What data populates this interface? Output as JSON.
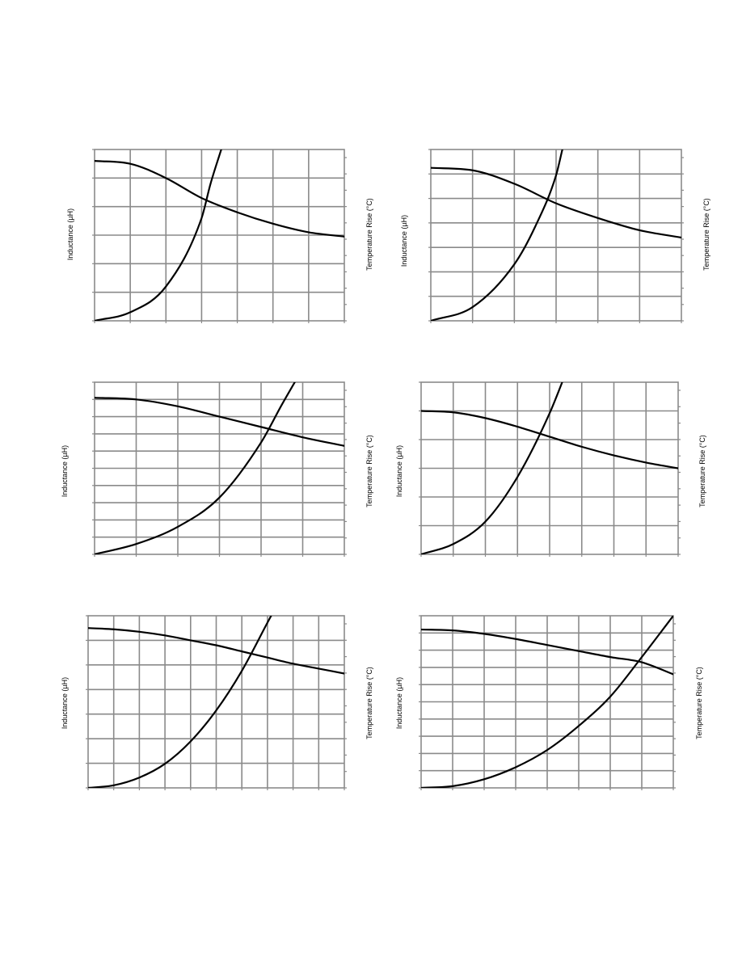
{
  "chart_data": [
    {
      "type": "line",
      "ylabel": "Inductance (µH)",
      "ylabel2": "Temperature Rise (°C)",
      "x_divisions": 7,
      "y_divisions": 6,
      "right_axis_divisions": 10,
      "series": [
        {
          "role": "inductance",
          "axis": "left",
          "x": [
            0,
            1,
            2,
            3,
            4,
            5,
            6,
            7
          ],
          "y": [
            5.6,
            5.5,
            5.0,
            4.3,
            3.8,
            3.4,
            3.1,
            2.95
          ]
        },
        {
          "role": "temperature",
          "axis": "right",
          "x": [
            0,
            1,
            2,
            3,
            3.25,
            3.55
          ],
          "y": [
            0,
            0.5,
            2.0,
            6.0,
            8.0,
            10.0
          ]
        }
      ]
    },
    {
      "type": "line",
      "ylabel": "Inductance (µH)",
      "ylabel2": "Temperature Rise (°C)",
      "x_divisions": 6,
      "y_divisions": 7,
      "right_axis_divisions": 10,
      "series": [
        {
          "role": "inductance",
          "axis": "left",
          "x": [
            0,
            1,
            2,
            3,
            4,
            5,
            6
          ],
          "y": [
            6.25,
            6.15,
            5.6,
            4.8,
            4.2,
            3.7,
            3.4
          ]
        },
        {
          "role": "temperature",
          "axis": "right",
          "x": [
            0,
            1,
            2,
            2.5,
            3.0,
            3.15
          ],
          "y": [
            0,
            0.8,
            3.3,
            5.5,
            8.5,
            10.0
          ]
        }
      ]
    },
    {
      "type": "line",
      "ylabel": "Inductance (µH)",
      "ylabel2": "Temperature Rise (°C)",
      "x_divisions": 6,
      "y_divisions": 10,
      "right_axis_divisions": 10,
      "series": [
        {
          "role": "inductance",
          "axis": "left",
          "x": [
            0,
            1,
            2,
            3,
            4,
            5,
            6
          ],
          "y": [
            9.1,
            9.0,
            8.6,
            8.0,
            7.4,
            6.8,
            6.3
          ]
        },
        {
          "role": "temperature",
          "axis": "right",
          "x": [
            0,
            1,
            2,
            3,
            4,
            4.5,
            5.05
          ],
          "y": [
            0,
            0.6,
            1.6,
            3.3,
            6.5,
            8.7,
            11.0
          ]
        }
      ]
    },
    {
      "type": "line",
      "ylabel": "Inductance (µH)",
      "ylabel2": "Temperature Rise (°C)",
      "x_divisions": 8,
      "y_divisions": 6,
      "right_axis_divisions": 10,
      "series": [
        {
          "role": "inductance",
          "axis": "left",
          "x": [
            0,
            1,
            2,
            3,
            4,
            5,
            6,
            7,
            8
          ],
          "y": [
            5.0,
            4.95,
            4.75,
            4.45,
            4.1,
            3.75,
            3.45,
            3.2,
            3.0
          ]
        },
        {
          "role": "temperature",
          "axis": "right",
          "x": [
            0,
            1,
            2,
            3,
            4,
            4.6
          ],
          "y": [
            0,
            0.6,
            1.9,
            4.5,
            8.2,
            11.0
          ]
        }
      ]
    },
    {
      "type": "line",
      "ylabel": "Inductance (µH)",
      "ylabel2": "Temperature Rise (°C)",
      "x_divisions": 10,
      "y_divisions": 7,
      "right_axis_divisions": 10,
      "series": [
        {
          "role": "inductance",
          "axis": "left",
          "x": [
            0,
            1,
            2,
            3,
            4,
            5,
            6,
            7,
            8,
            9,
            10
          ],
          "y": [
            6.5,
            6.45,
            6.35,
            6.2,
            6.0,
            5.8,
            5.55,
            5.3,
            5.05,
            4.85,
            4.65
          ]
        },
        {
          "role": "temperature",
          "axis": "right",
          "x": [
            0,
            1,
            2,
            3,
            4,
            5,
            6,
            7,
            7.5
          ],
          "y": [
            0,
            0.15,
            0.6,
            1.4,
            2.7,
            4.5,
            6.8,
            9.6,
            11.0
          ]
        }
      ]
    },
    {
      "type": "line",
      "ylabel": "Inductance (µH)",
      "ylabel2": "Temperature Rise (°C)",
      "x_divisions": 8,
      "y_divisions": 10,
      "right_axis_divisions": 10,
      "series": [
        {
          "role": "inductance",
          "axis": "left",
          "x": [
            0,
            1,
            2,
            3,
            4,
            5,
            6,
            7,
            8
          ],
          "y": [
            9.2,
            9.15,
            8.95,
            8.65,
            8.3,
            7.95,
            7.6,
            7.3,
            6.6
          ]
        },
        {
          "role": "temperature",
          "axis": "right",
          "x": [
            0,
            1,
            2,
            3,
            4,
            5,
            6,
            7,
            8
          ],
          "y": [
            0,
            0.1,
            0.5,
            1.2,
            2.2,
            3.6,
            5.3,
            7.6,
            10.0
          ]
        }
      ]
    }
  ]
}
